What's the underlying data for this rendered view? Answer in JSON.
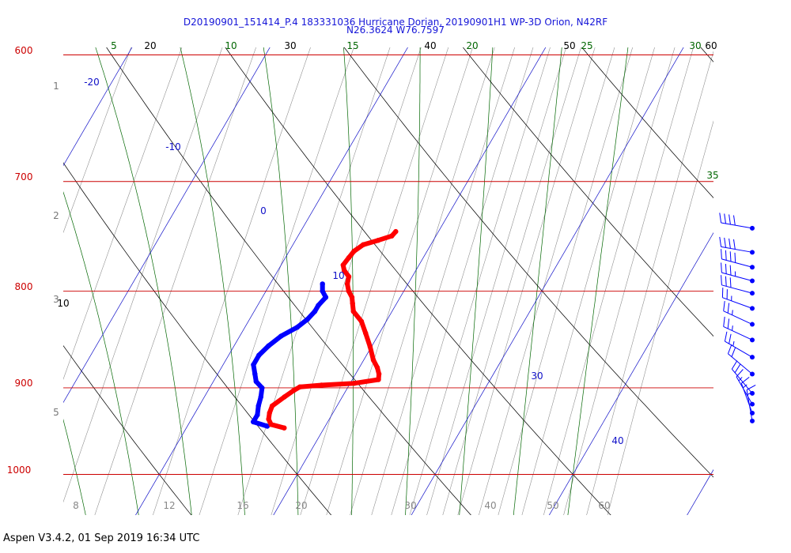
{
  "title_line1": "D20190901_151414_P.4 183331036 Hurricane Dorian, 20190901H1 WP-3D Orion, N42RF",
  "title_line2": "N26.3624 W76.7597",
  "footer": "Aspen V3.4.2, 01 Sep 2019  16:34 UTC",
  "colors": {
    "isobar": "#cc0000",
    "isotherm": "#1010c8",
    "dry_adiabat": "#000000",
    "moist_adiabat": "#006600",
    "mixing_ratio": "#888888",
    "temperature": "#ff0000",
    "dewpoint": "#0000ff",
    "wind": "#0000ff"
  },
  "chart_data": {
    "type": "skew-t",
    "pressure_levels_hPa": [
      "600",
      "700",
      "800",
      "900",
      "1000"
    ],
    "height_km_labels": [
      "1",
      "2",
      "3",
      "5"
    ],
    "isotherm_labels_C": [
      "-20",
      "-10",
      "0",
      "10",
      "30",
      "40"
    ],
    "dry_adiabat_labels": [
      "20",
      "30",
      "40",
      "50",
      "60",
      "10"
    ],
    "moist_adiabat_labels": [
      "5",
      "10",
      "15",
      "20",
      "25",
      "30",
      "35"
    ],
    "mixing_ratio_labels": [
      "8",
      "12",
      "16",
      "20",
      "30",
      "40",
      "50",
      "60"
    ],
    "temperature_profile": [
      {
        "p": 744,
        "t": 16.9
      },
      {
        "p": 748,
        "t": 16.8
      },
      {
        "p": 752,
        "t": 16.0
      },
      {
        "p": 756,
        "t": 15.1
      },
      {
        "p": 762,
        "t": 14.7
      },
      {
        "p": 768,
        "t": 14.6
      },
      {
        "p": 775,
        "t": 14.5
      },
      {
        "p": 780,
        "t": 14.8
      },
      {
        "p": 786,
        "t": 15.4
      },
      {
        "p": 793,
        "t": 15.6
      },
      {
        "p": 800,
        "t": 16.0
      },
      {
        "p": 806,
        "t": 16.5
      },
      {
        "p": 812,
        "t": 16.8
      },
      {
        "p": 820,
        "t": 17.2
      },
      {
        "p": 830,
        "t": 18.2
      },
      {
        "p": 842,
        "t": 19.0
      },
      {
        "p": 856,
        "t": 19.9
      },
      {
        "p": 870,
        "t": 20.7
      },
      {
        "p": 878,
        "t": 21.3
      },
      {
        "p": 885,
        "t": 21.7
      },
      {
        "p": 891,
        "t": 21.9
      },
      {
        "p": 895,
        "t": 20.3
      },
      {
        "p": 897,
        "t": 18.0
      },
      {
        "p": 899,
        "t": 16.5
      },
      {
        "p": 903,
        "t": 16.2
      },
      {
        "p": 910,
        "t": 15.8
      },
      {
        "p": 920,
        "t": 15.3
      },
      {
        "p": 928,
        "t": 15.4
      },
      {
        "p": 935,
        "t": 15.6
      },
      {
        "p": 941,
        "t": 16.0
      },
      {
        "p": 945,
        "t": 17.1
      }
    ],
    "dewpoint_profile": [
      {
        "p": 793,
        "t": 13.8
      },
      {
        "p": 800,
        "t": 14.1
      },
      {
        "p": 806,
        "t": 14.6
      },
      {
        "p": 814,
        "t": 14.4
      },
      {
        "p": 820,
        "t": 14.4
      },
      {
        "p": 828,
        "t": 14.2
      },
      {
        "p": 836,
        "t": 13.8
      },
      {
        "p": 845,
        "t": 13.0
      },
      {
        "p": 855,
        "t": 12.5
      },
      {
        "p": 865,
        "t": 12.2
      },
      {
        "p": 875,
        "t": 12.2
      },
      {
        "p": 885,
        "t": 12.7
      },
      {
        "p": 893,
        "t": 13.1
      },
      {
        "p": 900,
        "t": 13.8
      },
      {
        "p": 910,
        "t": 14.1
      },
      {
        "p": 920,
        "t": 14.3
      },
      {
        "p": 930,
        "t": 14.6
      },
      {
        "p": 938,
        "t": 14.6
      },
      {
        "p": 943,
        "t": 15.8
      }
    ],
    "wind_profile": [
      {
        "p": 741,
        "dir": 100,
        "speed_kt": 40
      },
      {
        "p": 763,
        "dir": 100,
        "speed_kt": 40
      },
      {
        "p": 777,
        "dir": 105,
        "speed_kt": 40
      },
      {
        "p": 790,
        "dir": 105,
        "speed_kt": 35
      },
      {
        "p": 802,
        "dir": 105,
        "speed_kt": 30
      },
      {
        "p": 817,
        "dir": 110,
        "speed_kt": 25
      },
      {
        "p": 833,
        "dir": 115,
        "speed_kt": 25
      },
      {
        "p": 849,
        "dir": 115,
        "speed_kt": 25
      },
      {
        "p": 867,
        "dir": 120,
        "speed_kt": 25
      },
      {
        "p": 885,
        "dir": 130,
        "speed_kt": 20
      },
      {
        "p": 906,
        "dir": 140,
        "speed_kt": 20
      },
      {
        "p": 918,
        "dir": 150,
        "speed_kt": 15
      },
      {
        "p": 928,
        "dir": 160,
        "speed_kt": 15
      },
      {
        "p": 937,
        "dir": 170,
        "speed_kt": 15
      }
    ]
  }
}
